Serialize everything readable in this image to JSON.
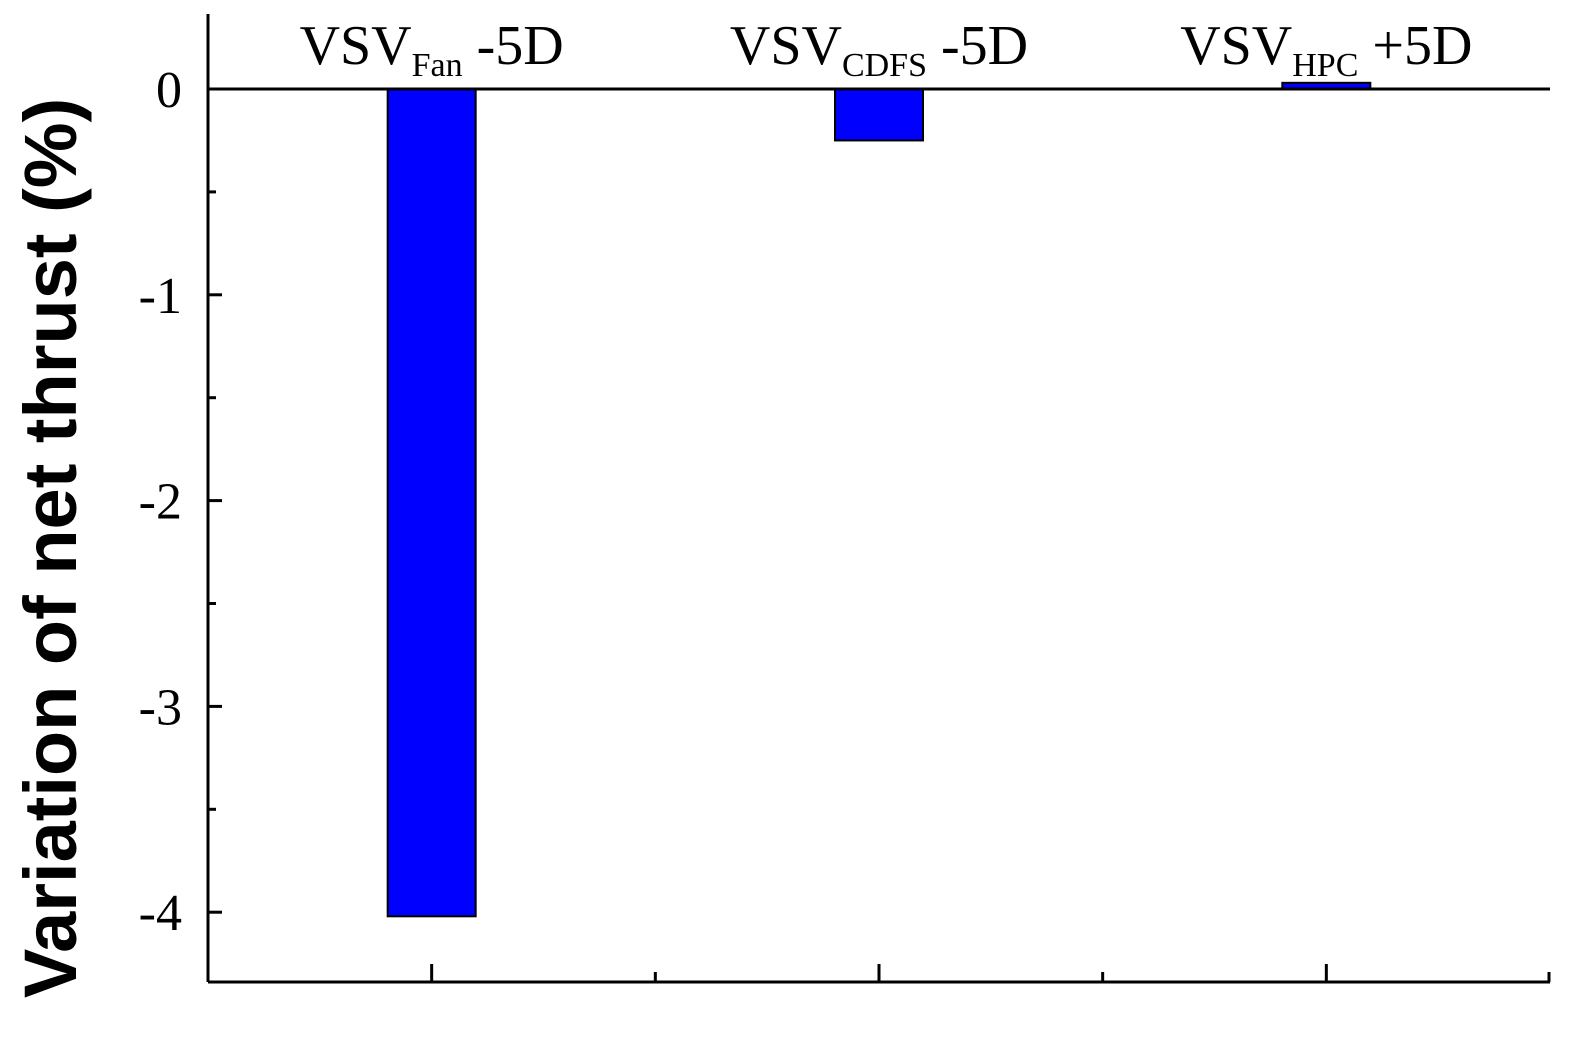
{
  "chart_data": {
    "type": "bar",
    "categories": [
      {
        "main": "VSV",
        "sub": "Fan",
        "suffix": " -5D"
      },
      {
        "main": "VSV",
        "sub": "CDFS",
        "suffix": " -5D"
      },
      {
        "main": "VSV",
        "sub": "HPC",
        "suffix": " +5D"
      }
    ],
    "values": [
      -4.02,
      -0.25,
      0.03
    ],
    "title": "",
    "xlabel": "",
    "ylabel": "Variation of net thrust (%)",
    "ylim": [
      -4.35,
      0.37
    ],
    "yticks": [
      0,
      -1,
      -2,
      -3,
      -4
    ],
    "ytick_labels": [
      "0",
      "-1",
      "-2",
      "-3",
      "-4"
    ],
    "grid": false,
    "legend": "none",
    "colors": {
      "bar_fill": "#0000ff",
      "bar_stroke": "#000000",
      "axis": "#000000"
    }
  }
}
